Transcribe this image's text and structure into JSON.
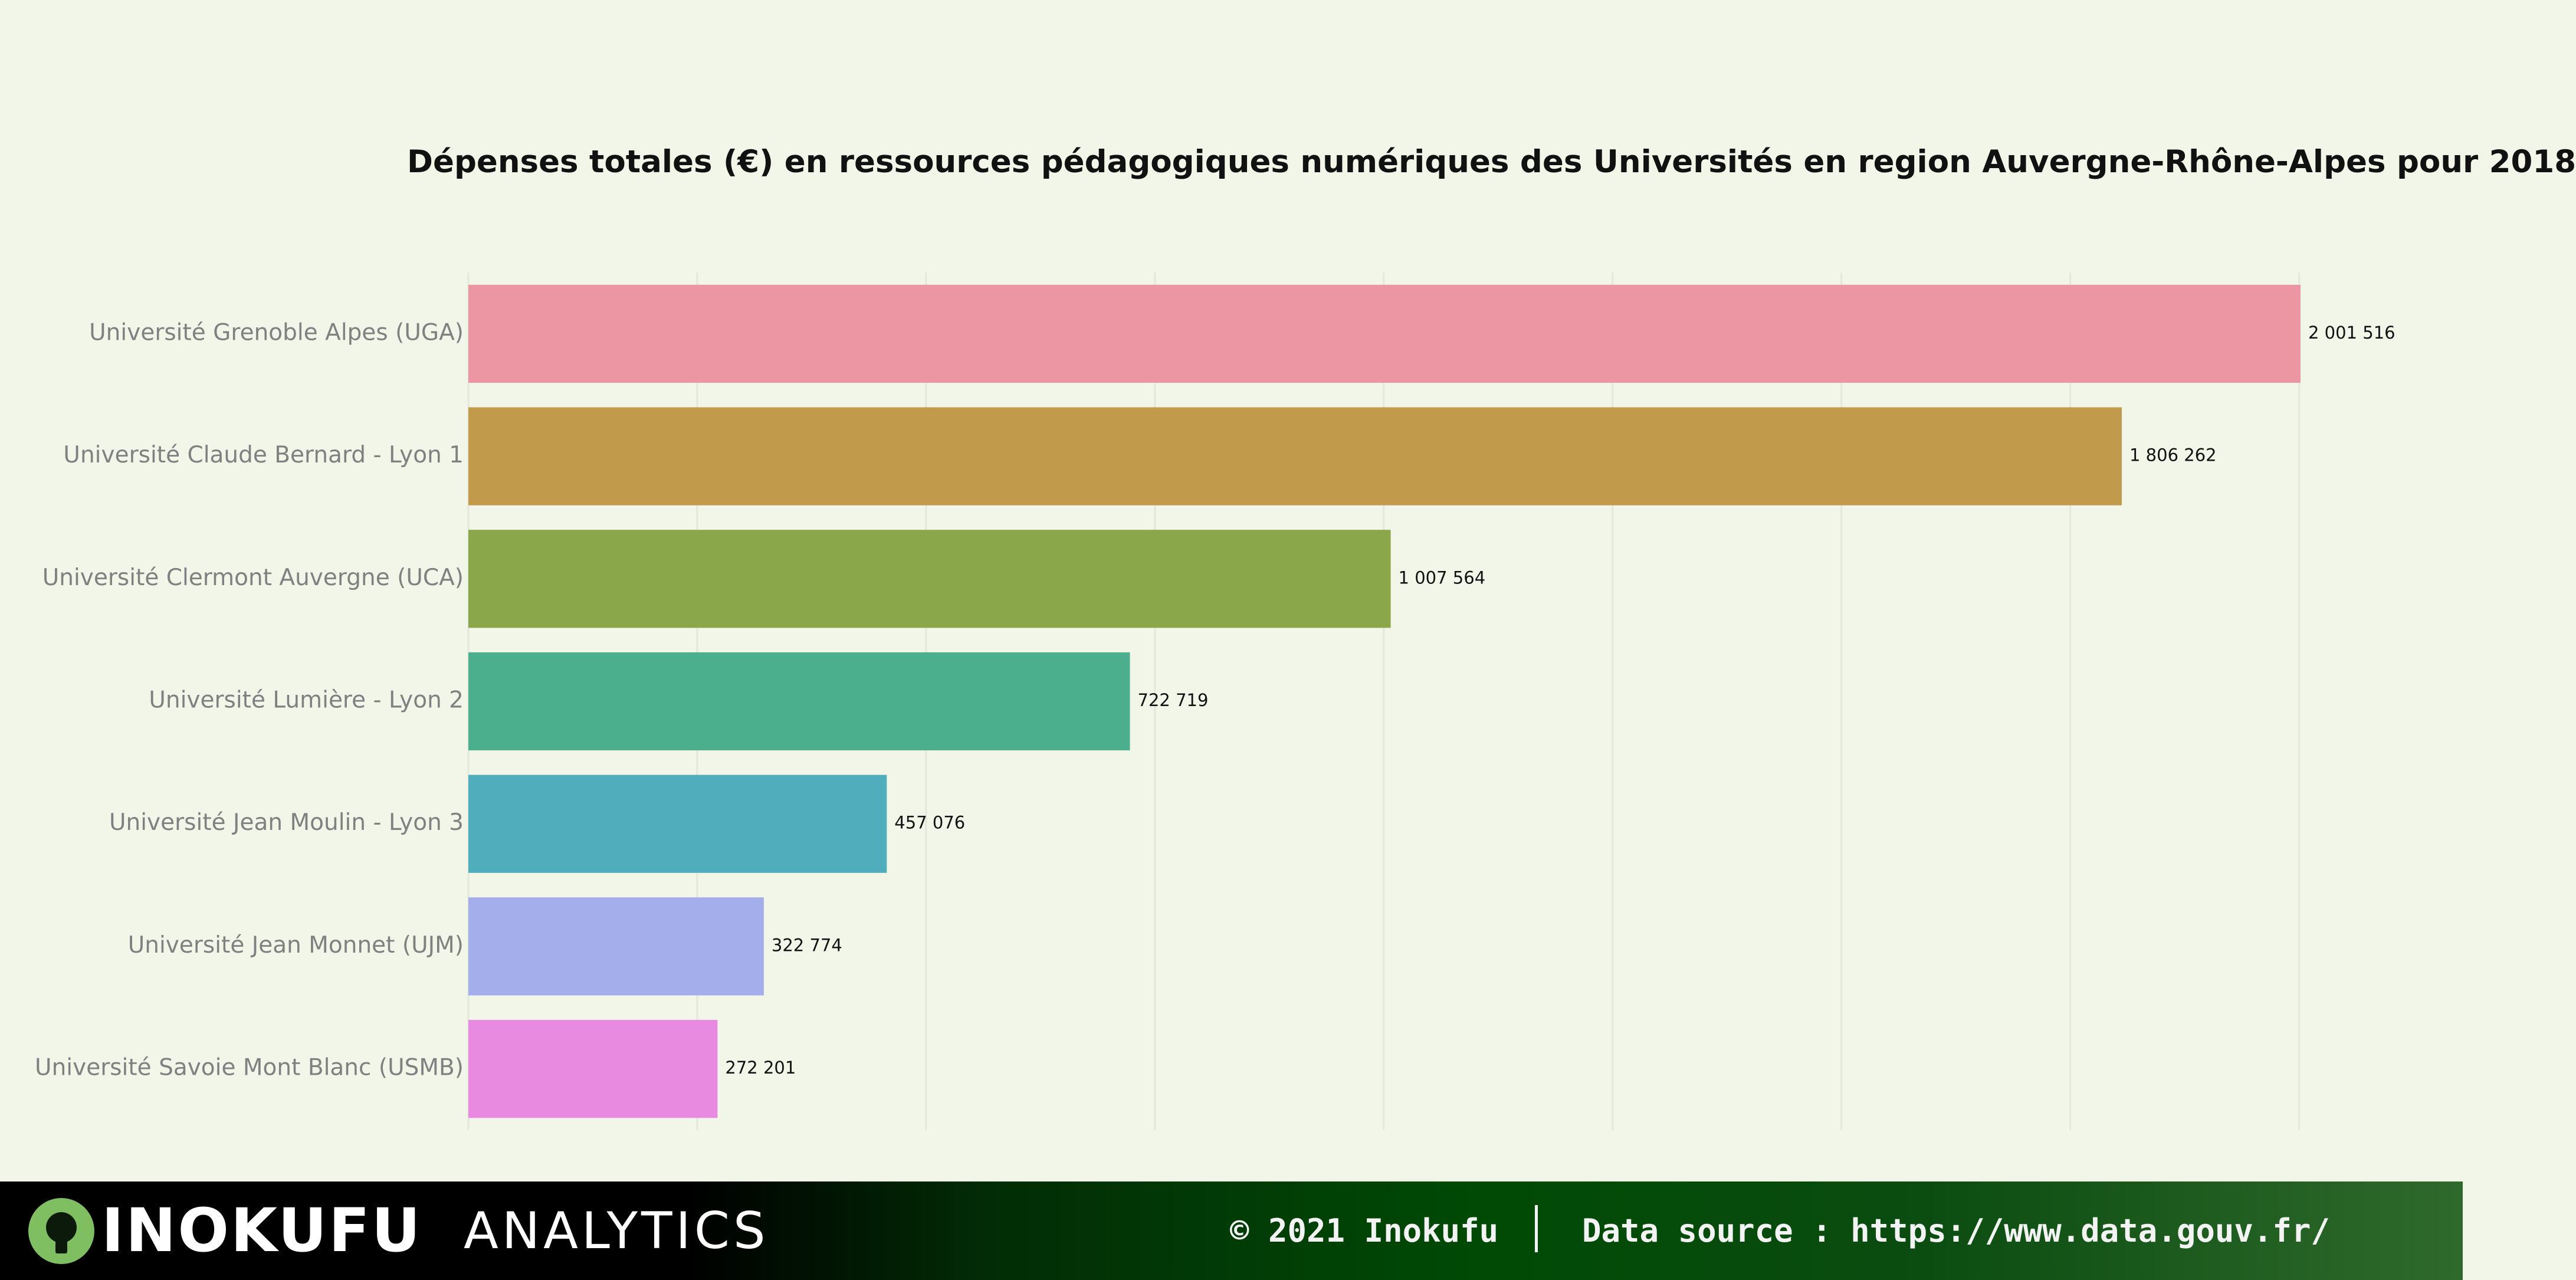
{
  "chart_data": {
    "type": "bar",
    "orientation": "horizontal",
    "title": "Dépenses totales (€) en ressources pédagogiques numériques des Universités en region Auvergne-Rhône-Alpes pour 2018",
    "categories": [
      "Université Grenoble Alpes (UGA)",
      "Université Claude Bernard - Lyon 1",
      "Université Clermont Auvergne (UCA)",
      "Université Lumière - Lyon 2",
      "Université Jean Moulin - Lyon 3",
      "Université Jean Monnet (UJM)",
      "Université Savoie Mont Blanc (USMB)"
    ],
    "values": [
      2001516,
      1806262,
      1007564,
      722719,
      457076,
      322774,
      272201
    ],
    "value_labels": [
      "2 001 516",
      "1 806 262",
      "1 007 564",
      "722 719",
      "457 076",
      "322 774",
      "272 201"
    ],
    "colors": [
      "#eb96a2",
      "#c29a4b",
      "#8aa84a",
      "#4baf8d",
      "#50adbb",
      "#a4aeea",
      "#e98ae1"
    ],
    "xlim": [
      0,
      2100000
    ],
    "grid": true,
    "legend": "none",
    "xlabel": "",
    "ylabel": ""
  },
  "footer": {
    "brand": "INOKUFU",
    "brand_sub": "ANALYTICS",
    "copyright": "© 2021 Inokufu",
    "data_source": "Data source : https://www.data.gouv.fr/"
  }
}
